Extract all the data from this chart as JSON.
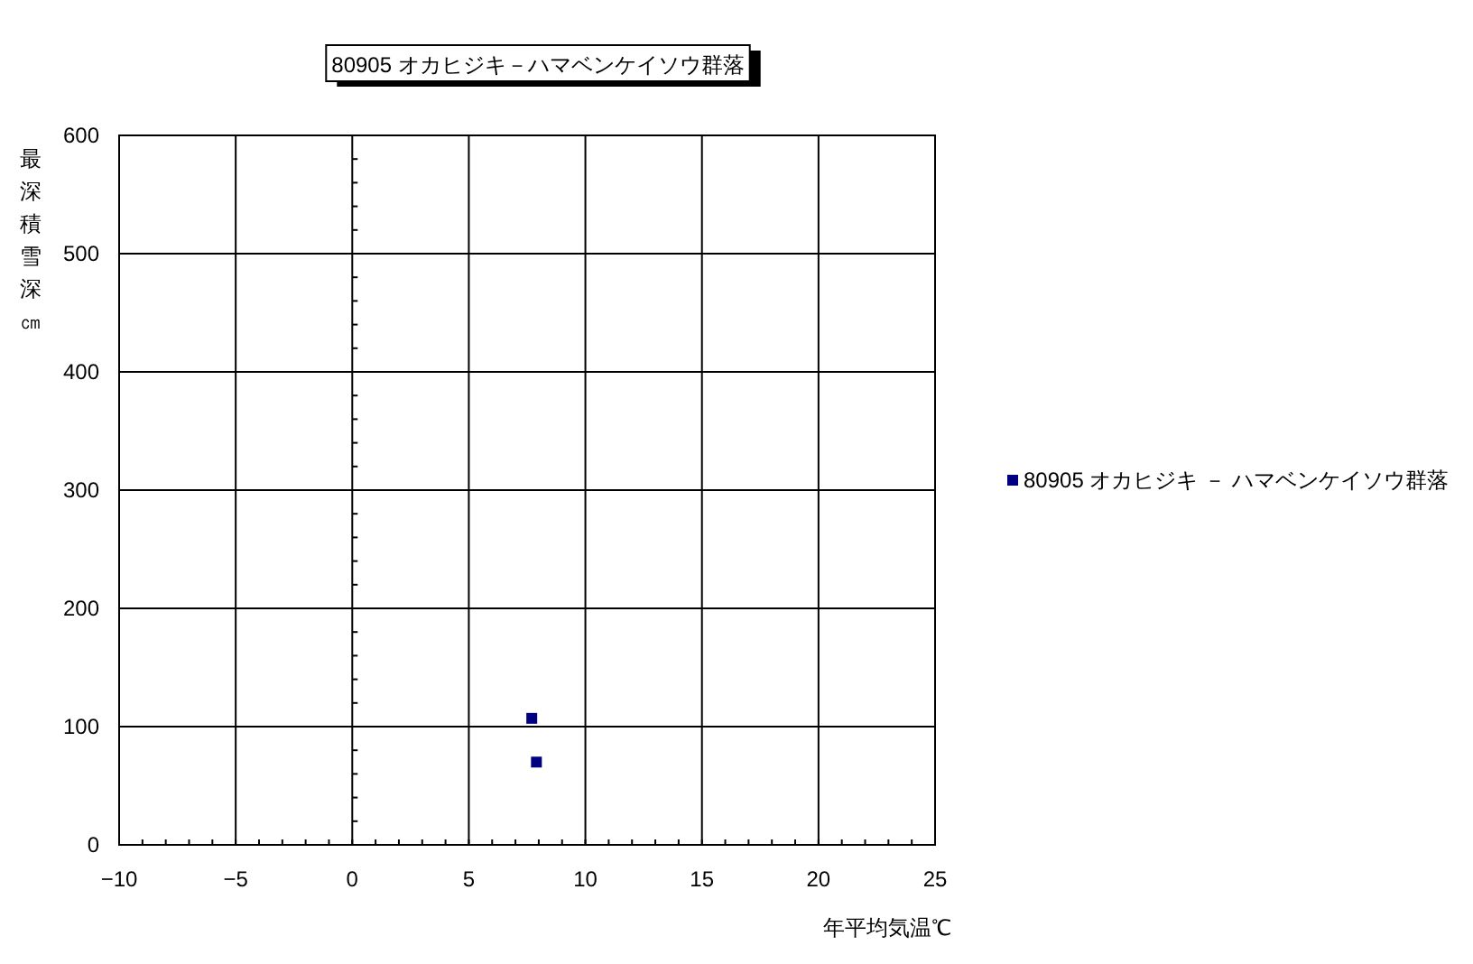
{
  "chart_data": {
    "type": "scatter",
    "title": "80905 オカヒジキ－ハマベンケイソウ群落",
    "xlabel": "年平均気温℃",
    "ylabel": "最深積雪深㎝",
    "x": [
      7.7,
      7.9
    ],
    "series": [
      {
        "name": "80905 オカヒジキ － ハマベンケイソウ群落",
        "color": "#000080",
        "values": [
          107,
          70
        ]
      }
    ],
    "xlim": [
      -10,
      25
    ],
    "xticks": [
      -10,
      -5,
      0,
      5,
      10,
      15,
      20,
      25
    ],
    "ylim": [
      0,
      600
    ],
    "yticks": [
      0,
      100,
      200,
      300,
      400,
      500,
      600
    ],
    "grid": true,
    "legend": "right",
    "marker": "square"
  }
}
